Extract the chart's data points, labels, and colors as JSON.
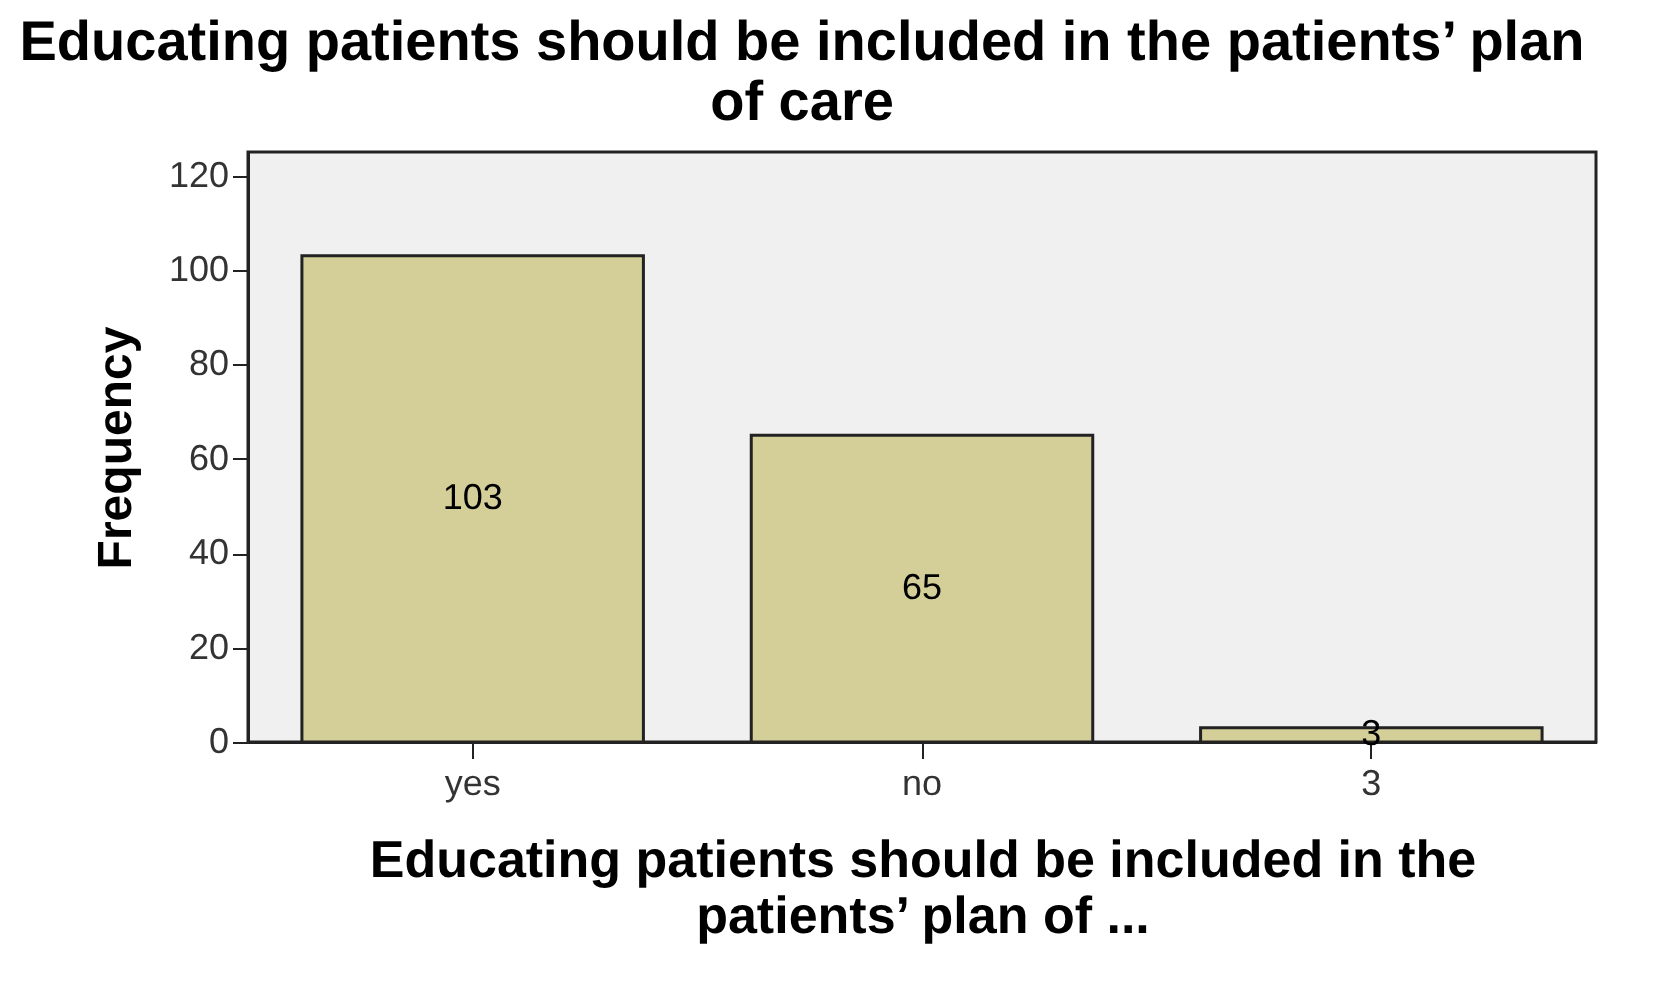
{
  "chart_data": {
    "type": "bar",
    "title": "Educating patients should be included in the patients’ plan of care",
    "xlabel": "Educating patients should be included in the patients’ plan of ...",
    "ylabel": "Frequency",
    "categories": [
      "yes",
      "no",
      "3"
    ],
    "values": [
      103,
      65,
      3
    ],
    "color": "#d4cf98",
    "ylim": [
      0,
      125
    ],
    "yticks": [
      0,
      20,
      40,
      60,
      80,
      100,
      120
    ],
    "data_labels": true,
    "grid": false
  }
}
